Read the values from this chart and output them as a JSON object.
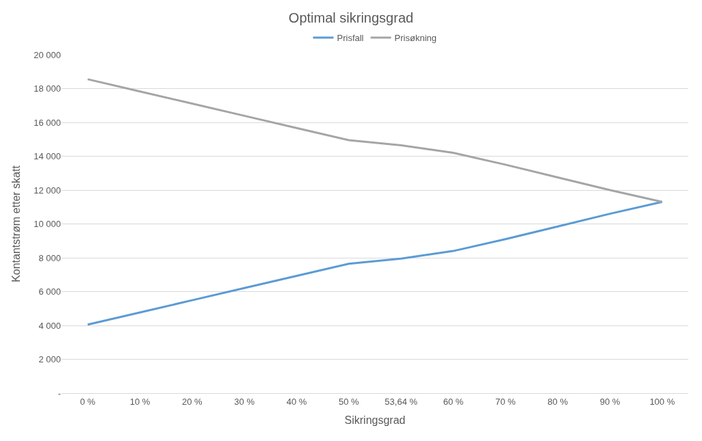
{
  "chart_data": {
    "type": "line",
    "title": "Optimal sikringsgrad",
    "xlabel": "Sikringsgrad",
    "ylabel": "Kontantstrøm etter skatt",
    "categories": [
      "0 %",
      "10 %",
      "20 %",
      "30 %",
      "40 %",
      "50 %",
      "53,64 %",
      "60 %",
      "70 %",
      "80 %",
      "90 %",
      "100 %"
    ],
    "series": [
      {
        "name": "Prisfall",
        "color": "#5b9bd5",
        "values": [
          4050,
          4770,
          5490,
          6210,
          6930,
          7650,
          7950,
          8400,
          9100,
          9850,
          10600,
          11300
        ]
      },
      {
        "name": "Prisøkning",
        "color": "#a5a5a5",
        "values": [
          18550,
          17830,
          17110,
          16390,
          15670,
          14950,
          14650,
          14200,
          13500,
          12750,
          12000,
          11300
        ]
      }
    ],
    "ylim": [
      0,
      20000
    ],
    "yticks": [
      {
        "value": 0,
        "label": "-"
      },
      {
        "value": 2000,
        "label": "2 000"
      },
      {
        "value": 4000,
        "label": "4 000"
      },
      {
        "value": 6000,
        "label": "6 000"
      },
      {
        "value": 8000,
        "label": "8 000"
      },
      {
        "value": 10000,
        "label": "10 000"
      },
      {
        "value": 12000,
        "label": "12 000"
      },
      {
        "value": 14000,
        "label": "14 000"
      },
      {
        "value": 16000,
        "label": "16 000"
      },
      {
        "value": 18000,
        "label": "18 000"
      },
      {
        "value": 20000,
        "label": "20 000"
      }
    ],
    "grid": "y",
    "legend": "top",
    "marker": "none",
    "line_style": "solid"
  }
}
